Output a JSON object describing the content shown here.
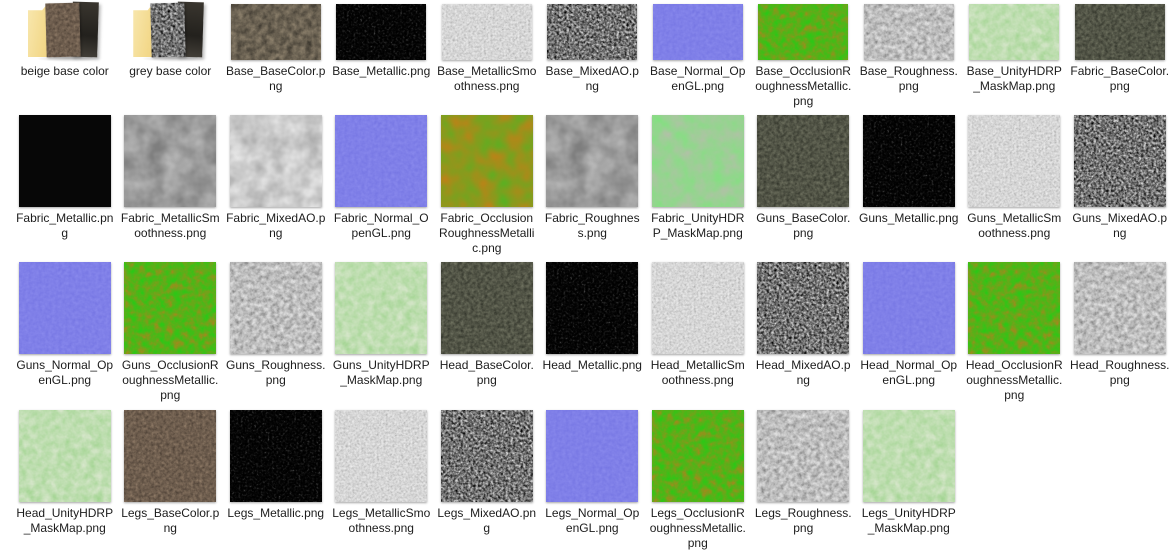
{
  "window": {
    "kind": "file-explorer-icon-grid",
    "background": "#ffffff",
    "view_mode": "large-icons"
  },
  "colors": {
    "label_text": "#1c1c1c",
    "folder_yellow": "#f3d98c",
    "normal_map_purple": "#7b7be9",
    "orm_green": "#2fcc30",
    "orm_orange": "#ee7c1e",
    "hdrp_mask_green": "#7de87d",
    "metallic_black": "#070707",
    "smoothness_light": "#e6e6e6"
  },
  "grid": {
    "rows": [
      {
        "items": [
          {
            "kind": "folder",
            "name": "beige base color",
            "variant": "beige",
            "icon": "folder-with-texture-preview-icon"
          },
          {
            "kind": "folder",
            "name": "grey base color",
            "variant": "grey",
            "icon": "folder-with-texture-preview-icon"
          },
          {
            "kind": "file",
            "name": "Base_BaseColor.png",
            "texture": "base-dark",
            "shape": "wide"
          },
          {
            "kind": "file",
            "name": "Base_Metallic.png",
            "texture": "fine-dark",
            "shape": "wide"
          },
          {
            "kind": "file",
            "name": "Base_MetallicSmoothness.png",
            "texture": "fine-light",
            "shape": "wide"
          },
          {
            "kind": "file",
            "name": "Base_MixedAO.png",
            "texture": "fine-mid",
            "shape": "wide"
          },
          {
            "kind": "file",
            "name": "Base_Normal_OpenGL.png",
            "texture": "normal",
            "shape": "wide"
          },
          {
            "kind": "file",
            "name": "Base_OcclusionRoughnessMetallic.png",
            "texture": "orm-green",
            "shape": "wide"
          },
          {
            "kind": "file",
            "name": "Base_Roughness.png",
            "texture": "rough-gray",
            "shape": "wide"
          },
          {
            "kind": "file",
            "name": "Base_UnityHDRP_MaskMap.png",
            "texture": "mask-pale",
            "shape": "wide"
          },
          {
            "kind": "file",
            "name": "Fabric_BaseColor.png",
            "texture": "stone-dark",
            "shape": "wide"
          }
        ]
      },
      {
        "items": [
          {
            "kind": "file",
            "name": "Fabric_Metallic.png",
            "texture": "solid-black",
            "shape": "square"
          },
          {
            "kind": "file",
            "name": "Fabric_MetallicSmoothness.png",
            "texture": "soft-gray",
            "shape": "square"
          },
          {
            "kind": "file",
            "name": "Fabric_MixedAO.png",
            "texture": "soft-white",
            "shape": "square"
          },
          {
            "kind": "file",
            "name": "Fabric_Normal_OpenGL.png",
            "texture": "normal",
            "shape": "square"
          },
          {
            "kind": "file",
            "name": "Fabric_OcclusionRoughnessMetallic.png",
            "texture": "orm-orange",
            "shape": "square"
          },
          {
            "kind": "file",
            "name": "Fabric_Roughness.png",
            "texture": "soft-gray",
            "shape": "square"
          },
          {
            "kind": "file",
            "name": "Fabric_UnityHDRP_MaskMap.png",
            "texture": "mask-green",
            "shape": "square"
          },
          {
            "kind": "file",
            "name": "Guns_BaseColor.png",
            "texture": "stone-dark",
            "shape": "square"
          },
          {
            "kind": "file",
            "name": "Guns_Metallic.png",
            "texture": "fine-dark",
            "shape": "square"
          },
          {
            "kind": "file",
            "name": "Guns_MetallicSmoothness.png",
            "texture": "fine-light",
            "shape": "square"
          },
          {
            "kind": "file",
            "name": "Guns_MixedAO.png",
            "texture": "fine-mid",
            "shape": "square"
          }
        ]
      },
      {
        "items": [
          {
            "kind": "file",
            "name": "Guns_Normal_OpenGL.png",
            "texture": "normal",
            "shape": "square"
          },
          {
            "kind": "file",
            "name": "Guns_OcclusionRoughnessMetallic.png",
            "texture": "orm-green",
            "shape": "square"
          },
          {
            "kind": "file",
            "name": "Guns_Roughness.png",
            "texture": "rough-gray",
            "shape": "square"
          },
          {
            "kind": "file",
            "name": "Guns_UnityHDRP_MaskMap.png",
            "texture": "mask-pale",
            "shape": "square"
          },
          {
            "kind": "file",
            "name": "Head_BaseColor.png",
            "texture": "stone-dark",
            "shape": "square"
          },
          {
            "kind": "file",
            "name": "Head_Metallic.png",
            "texture": "fine-dark",
            "shape": "square"
          },
          {
            "kind": "file",
            "name": "Head_MetallicSmoothness.png",
            "texture": "fine-light",
            "shape": "square"
          },
          {
            "kind": "file",
            "name": "Head_MixedAO.png",
            "texture": "fine-mid",
            "shape": "square"
          },
          {
            "kind": "file",
            "name": "Head_Normal_OpenGL.png",
            "texture": "normal",
            "shape": "square"
          },
          {
            "kind": "file",
            "name": "Head_OcclusionRoughnessMetallic.png",
            "texture": "orm-green",
            "shape": "square"
          },
          {
            "kind": "file",
            "name": "Head_Roughness.png",
            "texture": "rough-gray",
            "shape": "square"
          }
        ]
      },
      {
        "items": [
          {
            "kind": "file",
            "name": "Head_UnityHDRP_MaskMap.png",
            "texture": "mask-pale",
            "shape": "square"
          },
          {
            "kind": "file",
            "name": "Legs_BaseColor.png",
            "texture": "legs-brown",
            "shape": "square"
          },
          {
            "kind": "file",
            "name": "Legs_Metallic.png",
            "texture": "fine-dark",
            "shape": "square"
          },
          {
            "kind": "file",
            "name": "Legs_MetallicSmoothness.png",
            "texture": "fine-light",
            "shape": "square"
          },
          {
            "kind": "file",
            "name": "Legs_MixedAO.png",
            "texture": "fine-mid",
            "shape": "square"
          },
          {
            "kind": "file",
            "name": "Legs_Normal_OpenGL.png",
            "texture": "normal",
            "shape": "square"
          },
          {
            "kind": "file",
            "name": "Legs_OcclusionRoughnessMetallic.png",
            "texture": "orm-green",
            "shape": "square"
          },
          {
            "kind": "file",
            "name": "Legs_Roughness.png",
            "texture": "rough-gray",
            "shape": "square"
          },
          {
            "kind": "file",
            "name": "Legs_UnityHDRP_MaskMap.png",
            "texture": "mask-pale",
            "shape": "square"
          }
        ]
      }
    ]
  }
}
